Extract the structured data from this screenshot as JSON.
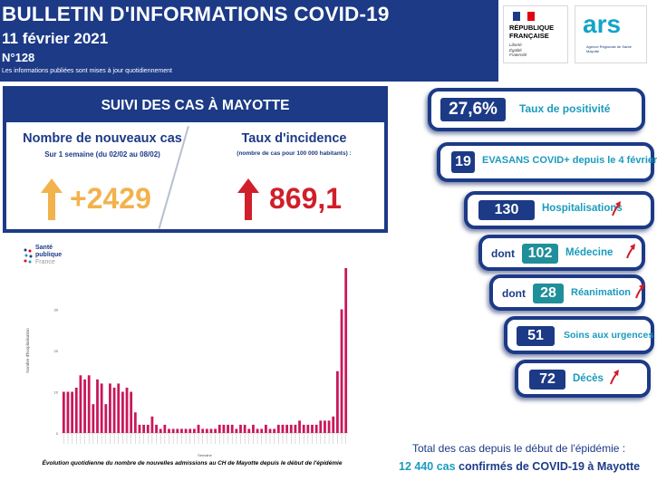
{
  "header": {
    "title": "BULLETIN D'INFORMATIONS COVID-19",
    "date": "11 février 2021",
    "issue": "N°128",
    "note": "Les informations publiées sont mises à jour quotidiennement"
  },
  "logos": {
    "republique": "RÉPUBLIQUE\nFRANÇAISE",
    "motto": "Liberté\nÉgalité\nFraternité",
    "ars": "ars",
    "ars_sub": "Agence Régionale de Santé\nMayotte",
    "sante_publique": "Santé\npublique",
    "sante_publique_france": "France"
  },
  "cases": {
    "header": "SUIVI DES CAS À MAYOTTE",
    "new_title": "Nombre de nouveaux cas",
    "new_subtitle": "Sur 1 semaine (du 02/02 au 08/02)",
    "new_value": "+2429",
    "incidence_title": "Taux d'incidence",
    "incidence_subtitle": "(nombre de cas pour 100 000 habitants) :",
    "incidence_value": "869,1"
  },
  "kpis": {
    "positivity_value": "27,6%",
    "positivity_label": "Taux de positivité",
    "evasans_value": "19",
    "evasans_label": "EVASANS COVID+ depuis le 4 février",
    "hosp_value": "130",
    "hosp_label": "Hospitalisations",
    "dont": "dont",
    "medecine_value": "102",
    "medecine_label": "Médecine",
    "rea_value": "28",
    "rea_label": "Réanimation",
    "urgences_value": "51",
    "urgences_label": "Soins aux urgences",
    "deces_value": "72",
    "deces_label": "Décès"
  },
  "totals": {
    "line1": "Total des cas depuis le début de l'épidémie :",
    "count": "12 440 cas",
    "rest": " confirmés de COVID-19 à Mayotte"
  },
  "colors": {
    "navy": "#1c3a86",
    "teal": "#1a9bbd",
    "orange": "#f2b24c",
    "red": "#d01f2a",
    "bar": "#c9175a"
  },
  "chart_data": {
    "type": "bar",
    "caption": "Évolution quotidienne du nombre de nouvelles admissions au CH de Mayotte depuis le début de l'épidémie",
    "ylabel": "Nombre d'hospitalisation",
    "xlabel": "Semaine",
    "y_ticks": [
      "30",
      "20",
      "10",
      "0"
    ],
    "ylim": [
      0,
      40
    ],
    "values": [
      10,
      10,
      10,
      11,
      14,
      13,
      14,
      7,
      13,
      12,
      7,
      12,
      11,
      12,
      10,
      11,
      10,
      5,
      2,
      2,
      2,
      4,
      2,
      1,
      2,
      1,
      1,
      1,
      1,
      1,
      1,
      1,
      2,
      1,
      1,
      1,
      1,
      2,
      2,
      2,
      2,
      1,
      2,
      2,
      1,
      2,
      1,
      1,
      2,
      1,
      1,
      2,
      2,
      2,
      2,
      2,
      3,
      2,
      2,
      2,
      2,
      3,
      3,
      3,
      4,
      15,
      30,
      40
    ]
  }
}
